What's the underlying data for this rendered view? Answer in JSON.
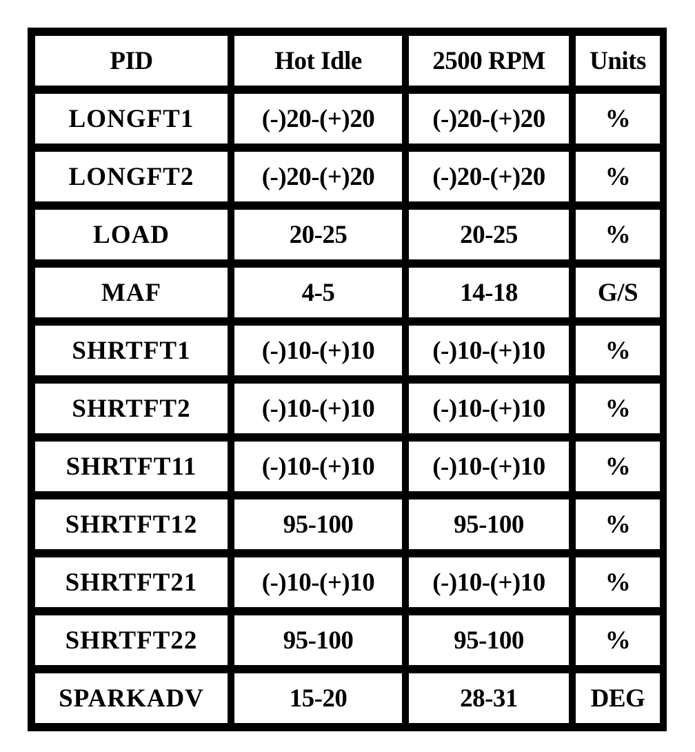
{
  "table": {
    "headers": [
      "PID",
      "Hot Idle",
      "2500 RPM",
      "Units"
    ],
    "rows": [
      [
        "LONGFT1",
        "(-)20-(+)20",
        "(-)20-(+)20",
        "%"
      ],
      [
        "LONGFT2",
        "(-)20-(+)20",
        "(-)20-(+)20",
        "%"
      ],
      [
        "LOAD",
        "20-25",
        "20-25",
        "%"
      ],
      [
        "MAF",
        "4-5",
        "14-18",
        "G/S"
      ],
      [
        "SHRTFT1",
        "(-)10-(+)10",
        "(-)10-(+)10",
        "%"
      ],
      [
        "SHRTFT2",
        "(-)10-(+)10",
        "(-)10-(+)10",
        "%"
      ],
      [
        "SHRTFT11",
        "(-)10-(+)10",
        "(-)10-(+)10",
        "%"
      ],
      [
        "SHRTFT12",
        "95-100",
        "95-100",
        "%"
      ],
      [
        "SHRTFT21",
        "(-)10-(+)10",
        "(-)10-(+)10",
        "%"
      ],
      [
        "SHRTFT22",
        "95-100",
        "95-100",
        "%"
      ],
      [
        "SPARKADV",
        "15-20",
        "28-31",
        "DEG"
      ]
    ]
  }
}
